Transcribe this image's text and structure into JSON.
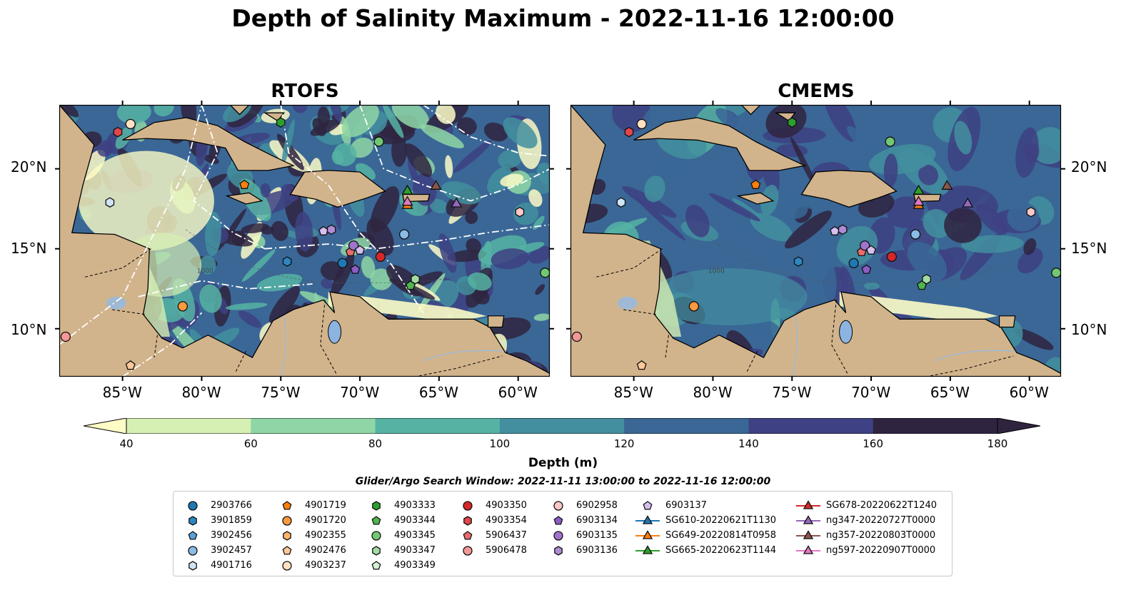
{
  "title": "Depth of Salinity Maximum - 2022-11-16 12:00:00",
  "panels": [
    {
      "title": "RTOFS"
    },
    {
      "title": "CMEMS"
    }
  ],
  "map": {
    "lat_ticks": [
      "20°N",
      "15°N",
      "10°N"
    ],
    "lon_ticks": [
      "85°W",
      "80°W",
      "75°W",
      "70°W",
      "65°W",
      "60°W"
    ],
    "lon_range": [
      -89,
      -58
    ],
    "lat_range": [
      7,
      24
    ],
    "land_color": "#d2b48c",
    "contour_label": "1000"
  },
  "colorbar": {
    "label": "Depth (m)",
    "ticks": [
      "40",
      "60",
      "80",
      "100",
      "120",
      "140",
      "160",
      "180"
    ],
    "colors": [
      "#fdfcc6",
      "#d6efb3",
      "#8fd6a6",
      "#56b3a3",
      "#438f9f",
      "#3a6796",
      "#3e4183",
      "#2f2440"
    ],
    "extend": "both"
  },
  "window_note": "Glider/Argo Search Window: 2022-11-11 13:00:00 to 2022-11-16 12:00:00",
  "legend": {
    "columns": [
      [
        {
          "label": "2903766",
          "marker": "circle",
          "color": "#1f77b4"
        },
        {
          "label": "3901859",
          "marker": "hexagon",
          "color": "#2e86c1"
        },
        {
          "label": "3902456",
          "marker": "pentagon",
          "color": "#5aa0d8"
        },
        {
          "label": "3902457",
          "marker": "circle",
          "color": "#89bce8"
        },
        {
          "label": "4901716",
          "marker": "hexagon",
          "color": "#cfe4f6"
        }
      ],
      [
        {
          "label": "4901719",
          "marker": "pentagon",
          "color": "#ff7f0e"
        },
        {
          "label": "4901720",
          "marker": "circle",
          "color": "#ff9a3c"
        },
        {
          "label": "4902355",
          "marker": "hexagon",
          "color": "#ffb36e"
        },
        {
          "label": "4902476",
          "marker": "pentagon",
          "color": "#ffc898"
        },
        {
          "label": "4903237",
          "marker": "circle",
          "color": "#ffe1c2"
        }
      ],
      [
        {
          "label": "4903333",
          "marker": "hexagon",
          "color": "#2ca02c"
        },
        {
          "label": "4903344",
          "marker": "pentagon",
          "color": "#4fb54f"
        },
        {
          "label": "4903345",
          "marker": "circle",
          "color": "#72c872"
        },
        {
          "label": "4903347",
          "marker": "hexagon",
          "color": "#a3dca3"
        },
        {
          "label": "4903349",
          "marker": "pentagon",
          "color": "#d4f0d4"
        }
      ],
      [
        {
          "label": "4903350",
          "marker": "circle",
          "color": "#d62728"
        },
        {
          "label": "4903354",
          "marker": "hexagon",
          "color": "#e0474a"
        },
        {
          "label": "5906437",
          "marker": "pentagon",
          "color": "#ea6c6e"
        },
        {
          "label": "5906478",
          "marker": "circle",
          "color": "#f59797"
        }
      ],
      [
        {
          "label": "6902958",
          "marker": "circle",
          "color": "#fcc7c7"
        },
        {
          "label": "6903134",
          "marker": "pentagon",
          "color": "#8e5cc4"
        },
        {
          "label": "6903135",
          "marker": "circle",
          "color": "#9f74cd"
        },
        {
          "label": "6903136",
          "marker": "hexagon",
          "color": "#b08bd6"
        }
      ],
      [
        {
          "label": "6903137",
          "marker": "pentagon",
          "color": "#d7bff0"
        },
        {
          "label": "SG610-20220621T1130",
          "marker": "triangle",
          "color": "#1f77b4"
        },
        {
          "label": "SG649-20220814T0958",
          "marker": "triangle",
          "color": "#ff7f0e"
        },
        {
          "label": "SG665-20220623T1144",
          "marker": "triangle",
          "color": "#2ca02c"
        }
      ],
      [
        {
          "label": "SG678-20220622T1240",
          "marker": "triangle",
          "color": "#d62728"
        },
        {
          "label": "ng347-20220727T0000",
          "marker": "triangle",
          "color": "#9467bd"
        },
        {
          "label": "ng357-20220803T0000",
          "marker": "triangle",
          "color": "#8c564b"
        },
        {
          "label": "ng597-20220907T0000",
          "marker": "triangle",
          "color": "#e377c2"
        }
      ]
    ]
  },
  "floats": [
    {
      "lon": -85.3,
      "lat": 22.3,
      "marker": "hexagon",
      "color": "#e0474a"
    },
    {
      "lon": -84.5,
      "lat": 22.8,
      "marker": "circle",
      "color": "#ffe1c2"
    },
    {
      "lon": -85.8,
      "lat": 17.9,
      "marker": "hexagon",
      "color": "#cfe4f6"
    },
    {
      "lon": -77.3,
      "lat": 19.0,
      "marker": "pentagon",
      "color": "#ff7f0e"
    },
    {
      "lon": -75.0,
      "lat": 22.9,
      "marker": "hexagon",
      "color": "#2ca02c"
    },
    {
      "lon": -68.8,
      "lat": 21.7,
      "marker": "circle",
      "color": "#72c872"
    },
    {
      "lon": -74.6,
      "lat": 14.2,
      "marker": "hexagon",
      "color": "#2e86c1"
    },
    {
      "lon": -72.3,
      "lat": 16.1,
      "marker": "pentagon",
      "color": "#d7bff0"
    },
    {
      "lon": -71.8,
      "lat": 16.2,
      "marker": "hexagon",
      "color": "#b08bd6"
    },
    {
      "lon": -71.1,
      "lat": 14.1,
      "marker": "circle",
      "color": "#1f77b4"
    },
    {
      "lon": -70.6,
      "lat": 14.8,
      "marker": "pentagon",
      "color": "#ea6c6e"
    },
    {
      "lon": -70.4,
      "lat": 15.2,
      "marker": "circle",
      "color": "#9f74cd"
    },
    {
      "lon": -70.0,
      "lat": 14.9,
      "marker": "pentagon",
      "color": "#d7bff0"
    },
    {
      "lon": -70.3,
      "lat": 13.7,
      "marker": "pentagon",
      "color": "#8e5cc4"
    },
    {
      "lon": -68.7,
      "lat": 14.5,
      "marker": "circle",
      "color": "#d62728"
    },
    {
      "lon": -67.2,
      "lat": 15.9,
      "marker": "circle",
      "color": "#89bce8"
    },
    {
      "lon": -66.5,
      "lat": 13.1,
      "marker": "hexagon",
      "color": "#a3dca3"
    },
    {
      "lon": -66.8,
      "lat": 12.7,
      "marker": "pentagon",
      "color": "#4fb54f"
    },
    {
      "lon": -59.9,
      "lat": 17.3,
      "marker": "hexagon",
      "color": "#fcc7c7"
    },
    {
      "lon": -58.3,
      "lat": 13.5,
      "marker": "circle",
      "color": "#72c872"
    },
    {
      "lon": -81.2,
      "lat": 11.4,
      "marker": "circle",
      "color": "#ff9a3c"
    },
    {
      "lon": -88.6,
      "lat": 9.5,
      "marker": "circle",
      "color": "#f59797"
    },
    {
      "lon": -84.5,
      "lat": 7.7,
      "marker": "pentagon",
      "color": "#ffc898"
    }
  ],
  "gliders": [
    {
      "lon": -67.0,
      "lat": 18.6,
      "color": "#2ca02c"
    },
    {
      "lon": -67.0,
      "lat": 17.7,
      "color": "#ff7f0e"
    },
    {
      "lon": -67.0,
      "lat": 17.9,
      "color": "#e377c2"
    },
    {
      "lon": -65.2,
      "lat": 18.9,
      "color": "#8c564b"
    },
    {
      "lon": -63.9,
      "lat": 17.8,
      "color": "#9467bd"
    }
  ]
}
